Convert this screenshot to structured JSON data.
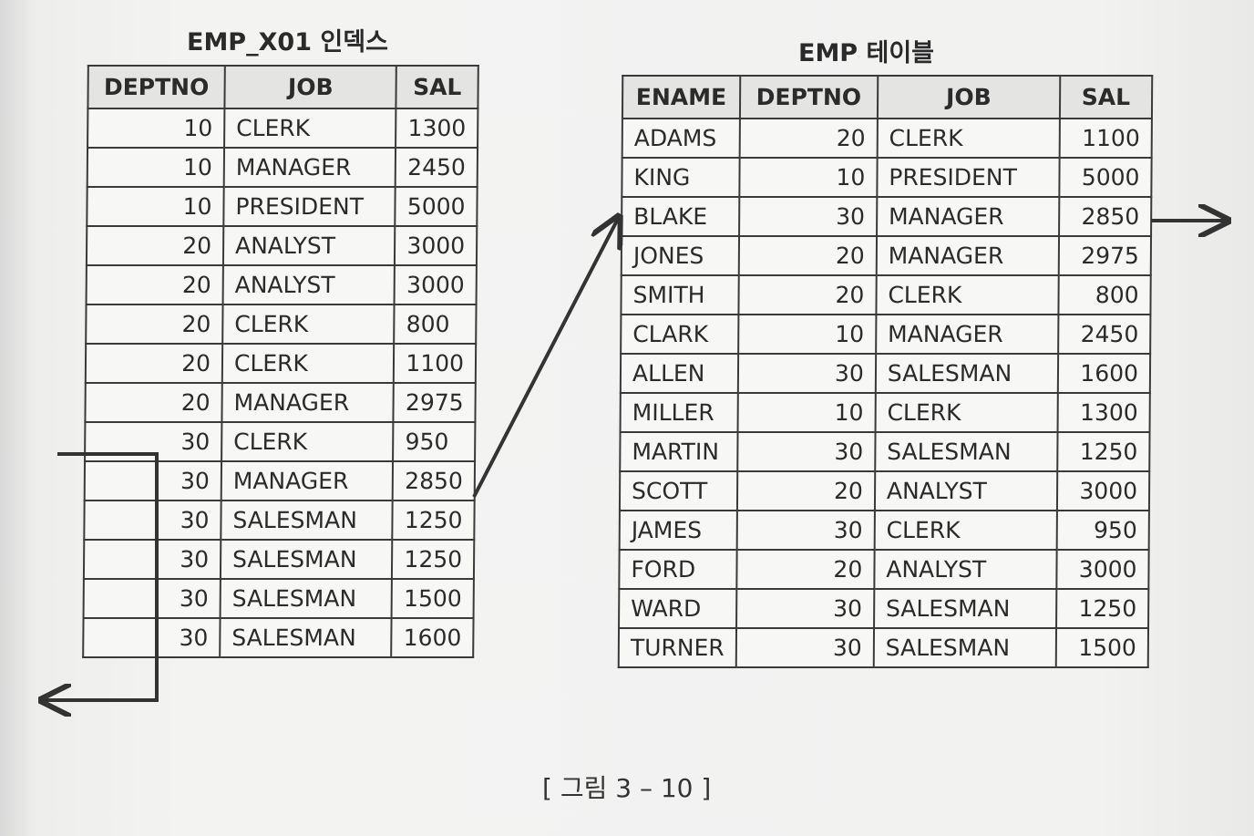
{
  "index_table": {
    "title": "EMP_X01 인덱스",
    "columns": [
      "DEPTNO",
      "JOB",
      "SAL"
    ],
    "rows": [
      {
        "deptno": "10",
        "job": "CLERK",
        "sal": "1300"
      },
      {
        "deptno": "10",
        "job": "MANAGER",
        "sal": "2450"
      },
      {
        "deptno": "10",
        "job": "PRESIDENT",
        "sal": "5000"
      },
      {
        "deptno": "20",
        "job": "ANALYST",
        "sal": "3000"
      },
      {
        "deptno": "20",
        "job": "ANALYST",
        "sal": "3000"
      },
      {
        "deptno": "20",
        "job": "CLERK",
        "sal": "800"
      },
      {
        "deptno": "20",
        "job": "CLERK",
        "sal": "1100"
      },
      {
        "deptno": "20",
        "job": "MANAGER",
        "sal": "2975"
      },
      {
        "deptno": "30",
        "job": "CLERK",
        "sal": "950"
      },
      {
        "deptno": "30",
        "job": "MANAGER",
        "sal": "2850"
      },
      {
        "deptno": "30",
        "job": "SALESMAN",
        "sal": "1250"
      },
      {
        "deptno": "30",
        "job": "SALESMAN",
        "sal": "1250"
      },
      {
        "deptno": "30",
        "job": "SALESMAN",
        "sal": "1500"
      },
      {
        "deptno": "30",
        "job": "SALESMAN",
        "sal": "1600"
      }
    ]
  },
  "emp_table": {
    "title": "EMP 테이블",
    "columns": [
      "ENAME",
      "DEPTNO",
      "JOB",
      "SAL"
    ],
    "rows": [
      {
        "ename": "ADAMS",
        "deptno": "20",
        "job": "CLERK",
        "sal": "1100"
      },
      {
        "ename": "KING",
        "deptno": "10",
        "job": "PRESIDENT",
        "sal": "5000"
      },
      {
        "ename": "BLAKE",
        "deptno": "30",
        "job": "MANAGER",
        "sal": "2850"
      },
      {
        "ename": "JONES",
        "deptno": "20",
        "job": "MANAGER",
        "sal": "2975"
      },
      {
        "ename": "SMITH",
        "deptno": "20",
        "job": "CLERK",
        "sal": "800"
      },
      {
        "ename": "CLARK",
        "deptno": "10",
        "job": "MANAGER",
        "sal": "2450"
      },
      {
        "ename": "ALLEN",
        "deptno": "30",
        "job": "SALESMAN",
        "sal": "1600"
      },
      {
        "ename": "MILLER",
        "deptno": "10",
        "job": "CLERK",
        "sal": "1300"
      },
      {
        "ename": "MARTIN",
        "deptno": "30",
        "job": "SALESMAN",
        "sal": "1250"
      },
      {
        "ename": "SCOTT",
        "deptno": "20",
        "job": "ANALYST",
        "sal": "3000"
      },
      {
        "ename": "JAMES",
        "deptno": "30",
        "job": "CLERK",
        "sal": "950"
      },
      {
        "ename": "FORD",
        "deptno": "20",
        "job": "ANALYST",
        "sal": "3000"
      },
      {
        "ename": "WARD",
        "deptno": "30",
        "job": "SALESMAN",
        "sal": "1250"
      },
      {
        "ename": "TURNER",
        "deptno": "30",
        "job": "SALESMAN",
        "sal": "1500"
      }
    ]
  },
  "caption": "[ 그림 3 – 10 ]",
  "colors": {
    "ink": "#2b2b2b",
    "header_bg": "#e4e4e3",
    "paper": "#f1f1f0"
  }
}
